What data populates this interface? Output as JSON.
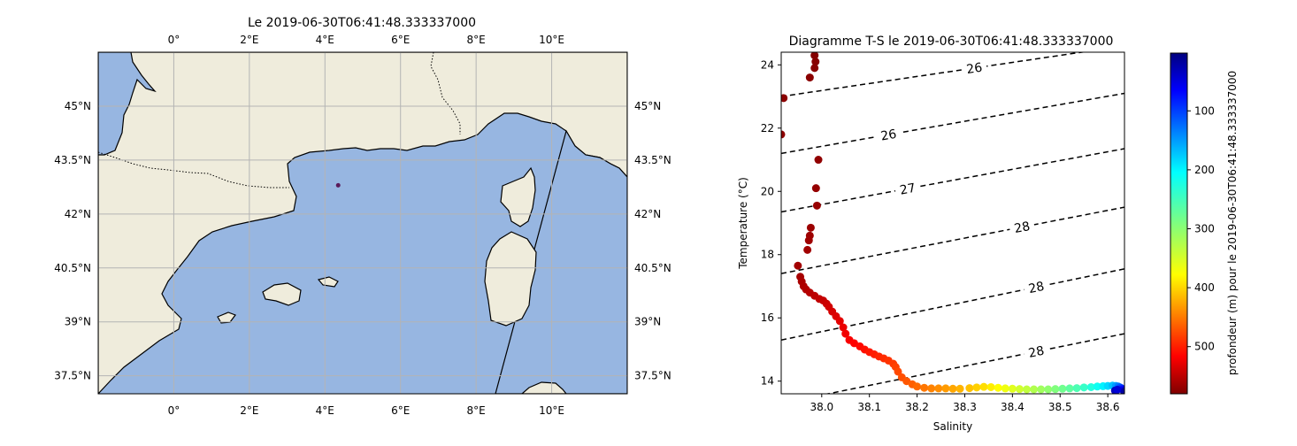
{
  "map": {
    "title": "Le 2019-06-30T06:41:48.333337000",
    "lon_labels": [
      "0°",
      "2°E",
      "4°E",
      "6°E",
      "8°E",
      "10°E"
    ],
    "lon_values": [
      0,
      2,
      4,
      6,
      8,
      10
    ],
    "lat_labels": [
      "45°N",
      "43.5°N",
      "42°N",
      "40.5°N",
      "39°N",
      "37.5°N"
    ],
    "lat_values": [
      45,
      43.5,
      42,
      40.5,
      39,
      37.5
    ],
    "extent": {
      "lon": [
        -2,
        12
      ],
      "lat": [
        37,
        46.5
      ]
    },
    "point": {
      "lon": 4.35,
      "lat": 42.8
    },
    "colors": {
      "land": "#efecdc",
      "sea": "#97b6e1",
      "grid": "#b4b4b4",
      "point": "#5a1a5a"
    }
  },
  "chart_data": {
    "type": "scatter",
    "title": "Diagramme T-S le 2019-06-30T06:41:48.333337000",
    "xlabel": "Salinity",
    "ylabel": "Temperature (°C)",
    "xlim": [
      37.915,
      38.635
    ],
    "ylim": [
      13.6,
      24.4
    ],
    "xticks": [
      "38.0",
      "38.1",
      "38.2",
      "38.3",
      "38.4",
      "38.5",
      "38.6"
    ],
    "xtick_values": [
      38.0,
      38.1,
      38.2,
      38.3,
      38.4,
      38.5,
      38.6
    ],
    "yticks": [
      "24",
      "22",
      "20",
      "18",
      "16",
      "14"
    ],
    "ytick_values": [
      24,
      22,
      20,
      18,
      16,
      14
    ],
    "colorbar": {
      "label": "profondeur (m) pour le 2019-06-30T06:41:48.333337000",
      "ticks": [
        "100",
        "200",
        "300",
        "400",
        "500"
      ],
      "tick_values": [
        100,
        200,
        300,
        400,
        500
      ],
      "range": [
        2,
        580
      ],
      "colormap": "jet_r"
    },
    "isopycnals": [
      {
        "label": "26",
        "y_left": 23.0,
        "y_right": 24.6,
        "label_x": 38.32,
        "label_y": 23.1
      },
      {
        "label": "26",
        "y_left": 21.2,
        "y_right": 23.1,
        "label_x": 38.14,
        "label_y": 22.0
      },
      {
        "label": "27",
        "y_left": 19.35,
        "y_right": 21.35,
        "label_x": 38.18,
        "label_y": 20.3
      },
      {
        "label": "28",
        "y_left": 17.4,
        "y_right": 19.5,
        "label_x": 38.42,
        "label_y": 19.1
      },
      {
        "label": "28",
        "y_left": 15.3,
        "y_right": 17.55,
        "label_x": 38.45,
        "label_y": 16.9
      },
      {
        "label": "28",
        "y_left": 13.3,
        "y_right": 15.5,
        "label_x": 38.45,
        "label_y": 14.95
      }
    ],
    "points": [
      {
        "s": 37.985,
        "t": 24.3,
        "d": 5
      },
      {
        "s": 37.987,
        "t": 24.1,
        "d": 6
      },
      {
        "s": 37.985,
        "t": 23.9,
        "d": 7
      },
      {
        "s": 37.975,
        "t": 23.6,
        "d": 8
      },
      {
        "s": 37.92,
        "t": 22.95,
        "d": 9
      },
      {
        "s": 37.915,
        "t": 21.8,
        "d": 10
      },
      {
        "s": 37.993,
        "t": 21.0,
        "d": 12
      },
      {
        "s": 37.988,
        "t": 20.1,
        "d": 14
      },
      {
        "s": 37.99,
        "t": 19.55,
        "d": 16
      },
      {
        "s": 37.977,
        "t": 18.85,
        "d": 18
      },
      {
        "s": 37.975,
        "t": 18.6,
        "d": 19
      },
      {
        "s": 37.973,
        "t": 18.45,
        "d": 20
      },
      {
        "s": 37.97,
        "t": 18.15,
        "d": 21
      },
      {
        "s": 37.95,
        "t": 17.65,
        "d": 22
      },
      {
        "s": 37.955,
        "t": 17.3,
        "d": 24
      },
      {
        "s": 37.958,
        "t": 17.15,
        "d": 26
      },
      {
        "s": 37.962,
        "t": 17.0,
        "d": 28
      },
      {
        "s": 37.967,
        "t": 16.9,
        "d": 30
      },
      {
        "s": 37.975,
        "t": 16.8,
        "d": 33
      },
      {
        "s": 37.985,
        "t": 16.7,
        "d": 36
      },
      {
        "s": 37.995,
        "t": 16.6,
        "d": 39
      },
      {
        "s": 38.003,
        "t": 16.55,
        "d": 42
      },
      {
        "s": 38.01,
        "t": 16.45,
        "d": 45
      },
      {
        "s": 38.015,
        "t": 16.35,
        "d": 48
      },
      {
        "s": 38.022,
        "t": 16.2,
        "d": 51
      },
      {
        "s": 38.03,
        "t": 16.05,
        "d": 55
      },
      {
        "s": 38.038,
        "t": 15.9,
        "d": 59
      },
      {
        "s": 38.045,
        "t": 15.7,
        "d": 63
      },
      {
        "s": 38.05,
        "t": 15.5,
        "d": 67
      },
      {
        "s": 38.058,
        "t": 15.3,
        "d": 71
      },
      {
        "s": 38.068,
        "t": 15.2,
        "d": 75
      },
      {
        "s": 38.08,
        "t": 15.1,
        "d": 79
      },
      {
        "s": 38.09,
        "t": 15.0,
        "d": 83
      },
      {
        "s": 38.1,
        "t": 14.92,
        "d": 87
      },
      {
        "s": 38.11,
        "t": 14.85,
        "d": 91
      },
      {
        "s": 38.12,
        "t": 14.78,
        "d": 95
      },
      {
        "s": 38.13,
        "t": 14.72,
        "d": 99
      },
      {
        "s": 38.14,
        "t": 14.65,
        "d": 103
      },
      {
        "s": 38.15,
        "t": 14.55,
        "d": 107
      },
      {
        "s": 38.155,
        "t": 14.45,
        "d": 111
      },
      {
        "s": 38.16,
        "t": 14.3,
        "d": 115
      },
      {
        "s": 38.168,
        "t": 14.12,
        "d": 119
      },
      {
        "s": 38.178,
        "t": 14.0,
        "d": 123
      },
      {
        "s": 38.19,
        "t": 13.9,
        "d": 128
      },
      {
        "s": 38.2,
        "t": 13.83,
        "d": 134
      },
      {
        "s": 38.215,
        "t": 13.79,
        "d": 141
      },
      {
        "s": 38.23,
        "t": 13.77,
        "d": 148
      },
      {
        "s": 38.245,
        "t": 13.77,
        "d": 155
      },
      {
        "s": 38.26,
        "t": 13.77,
        "d": 162
      },
      {
        "s": 38.275,
        "t": 13.76,
        "d": 169
      },
      {
        "s": 38.29,
        "t": 13.76,
        "d": 176
      },
      {
        "s": 38.31,
        "t": 13.78,
        "d": 184
      },
      {
        "s": 38.325,
        "t": 13.8,
        "d": 192
      },
      {
        "s": 38.34,
        "t": 13.82,
        "d": 200
      },
      {
        "s": 38.355,
        "t": 13.81,
        "d": 209
      },
      {
        "s": 38.37,
        "t": 13.79,
        "d": 218
      },
      {
        "s": 38.385,
        "t": 13.77,
        "d": 227
      },
      {
        "s": 38.4,
        "t": 13.76,
        "d": 236
      },
      {
        "s": 38.415,
        "t": 13.75,
        "d": 245
      },
      {
        "s": 38.43,
        "t": 13.74,
        "d": 254
      },
      {
        "s": 38.445,
        "t": 13.74,
        "d": 263
      },
      {
        "s": 38.46,
        "t": 13.74,
        "d": 272
      },
      {
        "s": 38.475,
        "t": 13.74,
        "d": 281
      },
      {
        "s": 38.49,
        "t": 13.75,
        "d": 290
      },
      {
        "s": 38.505,
        "t": 13.76,
        "d": 300
      },
      {
        "s": 38.52,
        "t": 13.77,
        "d": 310
      },
      {
        "s": 38.535,
        "t": 13.78,
        "d": 320
      },
      {
        "s": 38.55,
        "t": 13.8,
        "d": 332
      },
      {
        "s": 38.565,
        "t": 13.81,
        "d": 344
      },
      {
        "s": 38.578,
        "t": 13.83,
        "d": 356
      },
      {
        "s": 38.59,
        "t": 13.84,
        "d": 370
      },
      {
        "s": 38.6,
        "t": 13.85,
        "d": 385
      },
      {
        "s": 38.61,
        "t": 13.86,
        "d": 400
      },
      {
        "s": 38.617,
        "t": 13.85,
        "d": 420
      },
      {
        "s": 38.622,
        "t": 13.83,
        "d": 440
      },
      {
        "s": 38.626,
        "t": 13.8,
        "d": 460
      },
      {
        "s": 38.629,
        "t": 13.77,
        "d": 480
      },
      {
        "s": 38.631,
        "t": 13.74,
        "d": 500
      },
      {
        "s": 38.633,
        "t": 13.71,
        "d": 520
      },
      {
        "s": 38.634,
        "t": 13.68,
        "d": 540
      },
      {
        "s": 38.635,
        "t": 13.66,
        "d": 560
      },
      {
        "s": 38.615,
        "t": 13.7,
        "d": 545
      },
      {
        "s": 38.62,
        "t": 13.73,
        "d": 530
      }
    ]
  }
}
